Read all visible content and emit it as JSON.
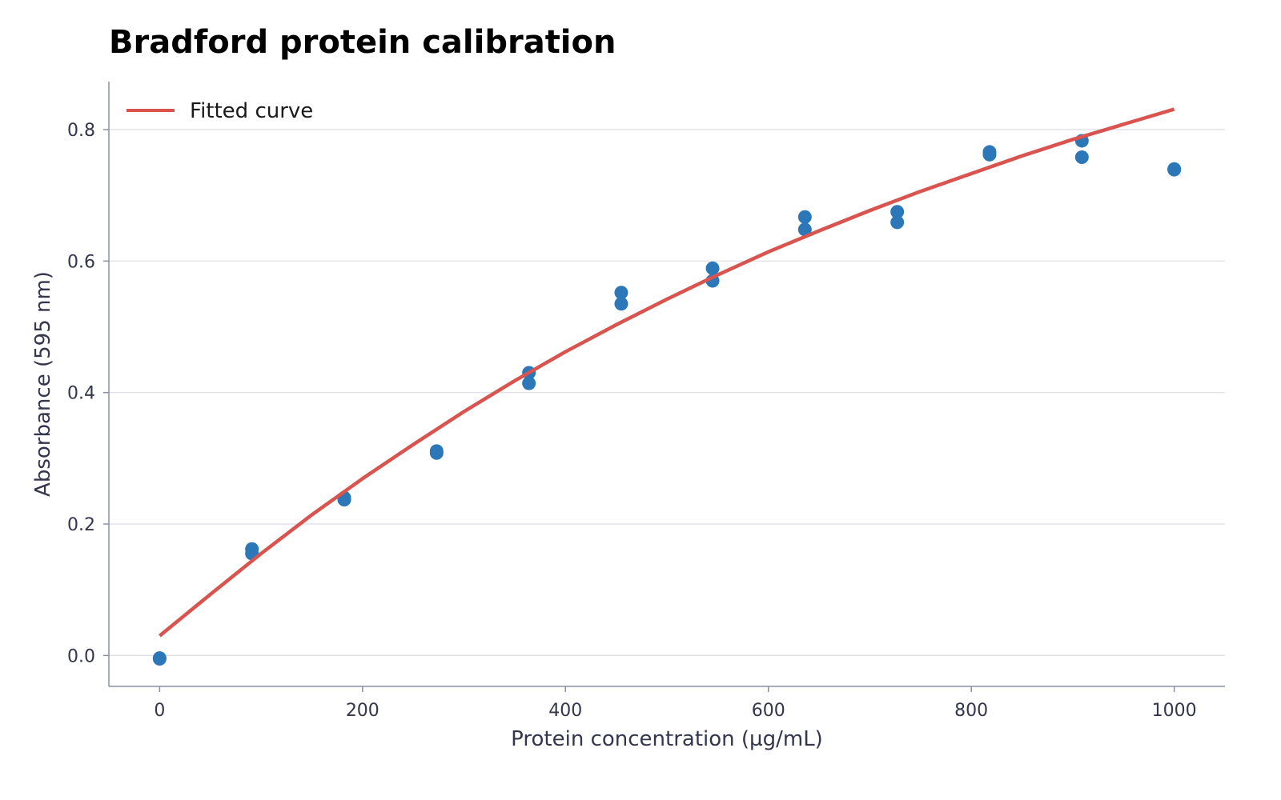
{
  "chart_data": {
    "type": "scatter",
    "title": "Bradford protein calibration",
    "xlabel": "Protein concentration (µg/mL)",
    "ylabel": "Absorbance (595 nm)",
    "xlim": [
      -50,
      1050
    ],
    "ylim": [
      -0.047,
      0.873
    ],
    "xticks": [
      0,
      200,
      400,
      600,
      800,
      1000
    ],
    "yticks": [
      0.0,
      0.2,
      0.4,
      0.6,
      0.8
    ],
    "ytick_labels": [
      "0.0",
      "0.2",
      "0.4",
      "0.6",
      "0.8"
    ],
    "grid": "horizontal",
    "legend_position": "top-left",
    "points": {
      "color": "#2b77b8",
      "x": [
        0,
        0,
        91,
        91,
        182,
        182,
        273,
        273,
        364,
        364,
        455,
        455,
        545,
        545,
        636,
        636,
        727,
        727,
        818,
        818,
        909,
        909,
        1000,
        1000
      ],
      "y": [
        -0.005,
        -0.004,
        0.162,
        0.155,
        0.24,
        0.237,
        0.311,
        0.308,
        0.43,
        0.414,
        0.552,
        0.535,
        0.589,
        0.57,
        0.667,
        0.648,
        0.675,
        0.659,
        0.766,
        0.762,
        0.783,
        0.758,
        0.74,
        0.739
      ]
    },
    "series": [
      {
        "name": "Fitted curve",
        "color": "#d9534f",
        "x": [
          0,
          50,
          100,
          150,
          200,
          250,
          300,
          350,
          400,
          450,
          500,
          550,
          600,
          650,
          700,
          750,
          800,
          850,
          900,
          950,
          1000
        ],
        "y": [
          0.03,
          0.093,
          0.155,
          0.214,
          0.269,
          0.321,
          0.371,
          0.418,
          0.462,
          0.503,
          0.542,
          0.579,
          0.614,
          0.646,
          0.677,
          0.706,
          0.733,
          0.76,
          0.785,
          0.808,
          0.831
        ]
      }
    ]
  }
}
